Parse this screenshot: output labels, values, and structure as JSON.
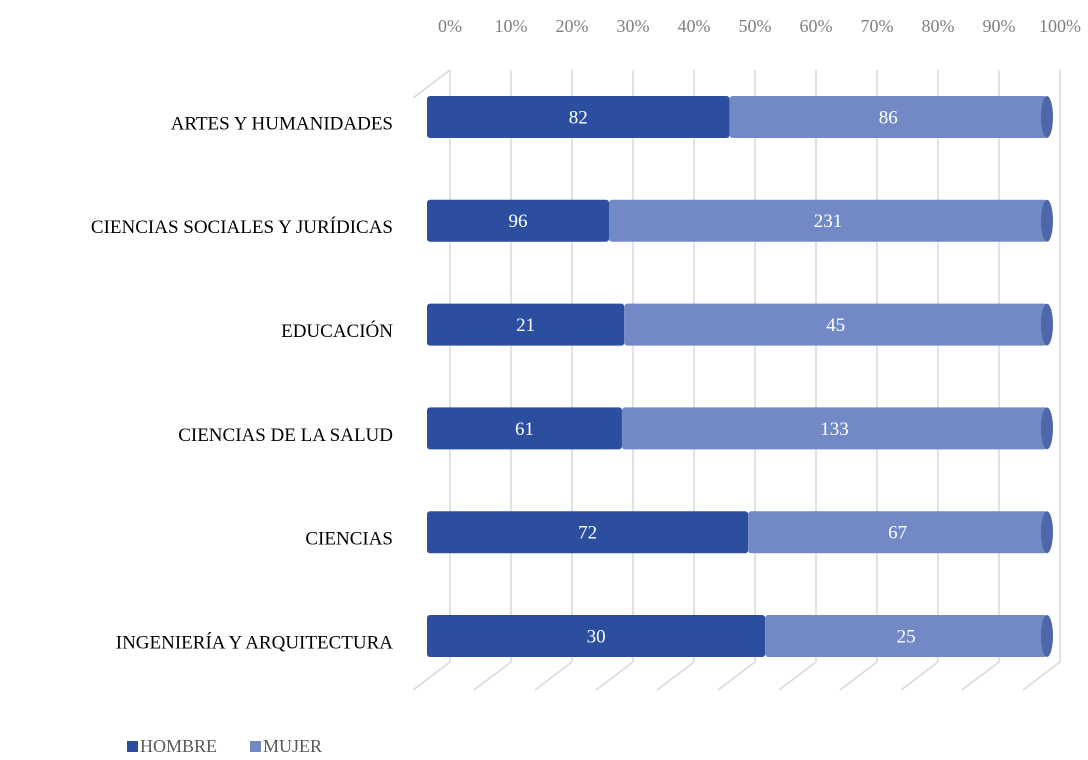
{
  "chart_data": {
    "type": "bar",
    "stacked": "percent",
    "orientation": "horizontal",
    "categories": [
      "ARTES Y HUMANIDADES",
      "CIENCIAS SOCIALES Y JURÍDICAS",
      "EDUCACIÓN",
      "CIENCIAS DE LA SALUD",
      "CIENCIAS",
      "INGENIERÍA Y ARQUITECTURA"
    ],
    "series": [
      {
        "name": "HOMBRE",
        "color": "#2b4f9e",
        "values": [
          82,
          96,
          21,
          61,
          72,
          30
        ]
      },
      {
        "name": "MUJER",
        "color": "#7289c5",
        "values": [
          86,
          231,
          45,
          133,
          67,
          25
        ]
      }
    ],
    "xlim": [
      0,
      100
    ],
    "xticks": [
      {
        "value": 0,
        "label": "0%"
      },
      {
        "value": 10,
        "label": "10%"
      },
      {
        "value": 20,
        "label": "20%"
      },
      {
        "value": 30,
        "label": "30%"
      },
      {
        "value": 40,
        "label": "40%"
      },
      {
        "value": 50,
        "label": "50%"
      },
      {
        "value": 60,
        "label": "60%"
      },
      {
        "value": 70,
        "label": "70%"
      },
      {
        "value": 80,
        "label": "80%"
      },
      {
        "value": 90,
        "label": "90%"
      },
      {
        "value": 100,
        "label": "100%"
      }
    ],
    "grid": true,
    "legend": "bottom-left"
  }
}
